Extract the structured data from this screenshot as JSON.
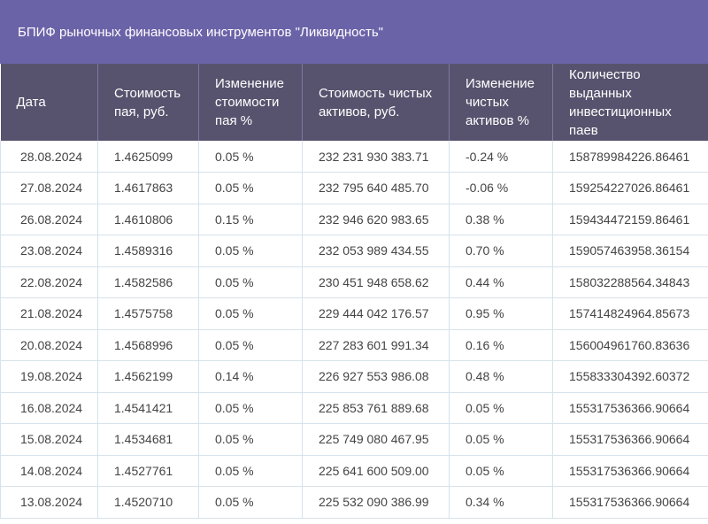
{
  "title": "БПИФ рыночных финансовых инструментов \"Ликвидность\"",
  "headers": [
    "Дата",
    "Стоимость пая, руб.",
    "Изменение стоимости пая %",
    "Стоимость чистых активов, руб.",
    "Изменение чистых активов %",
    "Количество выданных инвестиционных паев"
  ],
  "rows": [
    [
      "28.08.2024",
      "1.4625099",
      "0.05 %",
      "232 231 930 383.71",
      "-0.24 %",
      "158789984226.86461"
    ],
    [
      "27.08.2024",
      "1.4617863",
      "0.05 %",
      "232 795 640 485.70",
      "-0.06 %",
      "159254227026.86461"
    ],
    [
      "26.08.2024",
      "1.4610806",
      "0.15 %",
      "232 946 620 983.65",
      "0.38 %",
      "159434472159.86461"
    ],
    [
      "23.08.2024",
      "1.4589316",
      "0.05 %",
      "232 053 989 434.55",
      "0.70 %",
      "159057463958.36154"
    ],
    [
      "22.08.2024",
      "1.4582586",
      "0.05 %",
      "230 451 948 658.62",
      "0.44 %",
      "158032288564.34843"
    ],
    [
      "21.08.2024",
      "1.4575758",
      "0.05 %",
      "229 444 042 176.57",
      "0.95 %",
      "157414824964.85673"
    ],
    [
      "20.08.2024",
      "1.4568996",
      "0.05 %",
      "227 283 601 991.34",
      "0.16 %",
      "156004961760.83636"
    ],
    [
      "19.08.2024",
      "1.4562199",
      "0.14 %",
      "226 927 553 986.08",
      "0.48 %",
      "155833304392.60372"
    ],
    [
      "16.08.2024",
      "1.4541421",
      "0.05 %",
      "225 853 761 889.68",
      "0.05 %",
      "155317536366.90664"
    ],
    [
      "15.08.2024",
      "1.4534681",
      "0.05 %",
      "225 749 080 467.95",
      "0.05 %",
      "155317536366.90664"
    ],
    [
      "14.08.2024",
      "1.4527761",
      "0.05 %",
      "225 641 600 509.00",
      "0.05 %",
      "155317536366.90664"
    ],
    [
      "13.08.2024",
      "1.4520710",
      "0.05 %",
      "225 532 090 386.99",
      "0.34 %",
      "155317536366.90664"
    ]
  ]
}
